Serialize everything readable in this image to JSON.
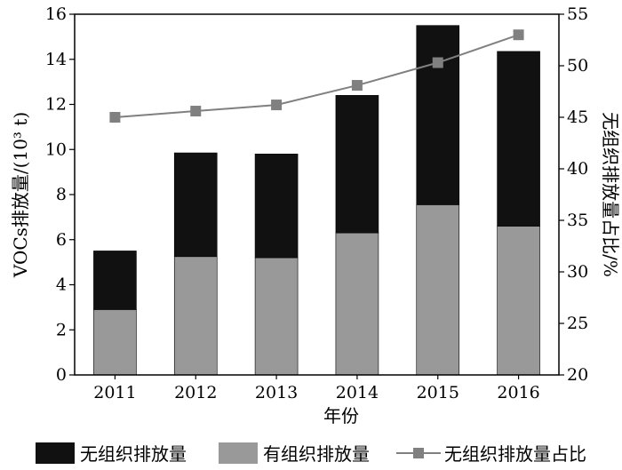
{
  "chart_data": {
    "type": "bar",
    "stacked": true,
    "categories": [
      "2011",
      "2012",
      "2013",
      "2014",
      "2015",
      "2016"
    ],
    "xlabel": "年份",
    "ylabel_left": "VOCs排放量/(10³ t)",
    "ylabel_right": "无组织排放量占比/%",
    "ylim_left": [
      0,
      16
    ],
    "yticks_left": [
      0,
      2,
      4,
      6,
      8,
      10,
      12,
      14,
      16
    ],
    "ylim_right": [
      20,
      55
    ],
    "yticks_right": [
      20,
      25,
      30,
      35,
      40,
      45,
      50,
      55
    ],
    "grid": false,
    "legend_position": "bottom",
    "series": [
      {
        "name": "有组织排放量",
        "type": "bar",
        "axis": "left",
        "color": "#999999",
        "values": [
          2.9,
          5.25,
          5.2,
          6.3,
          7.55,
          6.6
        ]
      },
      {
        "name": "无组织排放量",
        "type": "bar",
        "axis": "left",
        "color": "#111111",
        "values": [
          2.6,
          4.6,
          4.6,
          6.1,
          7.95,
          7.75
        ]
      },
      {
        "name": "无组织排放量占比",
        "type": "line",
        "axis": "right",
        "color": "#808080",
        "values": [
          45.0,
          45.6,
          46.2,
          48.1,
          50.3,
          53.0
        ]
      }
    ],
    "legend": [
      "无组织排放量",
      "有组织排放量",
      "无组织排放量占比"
    ]
  }
}
